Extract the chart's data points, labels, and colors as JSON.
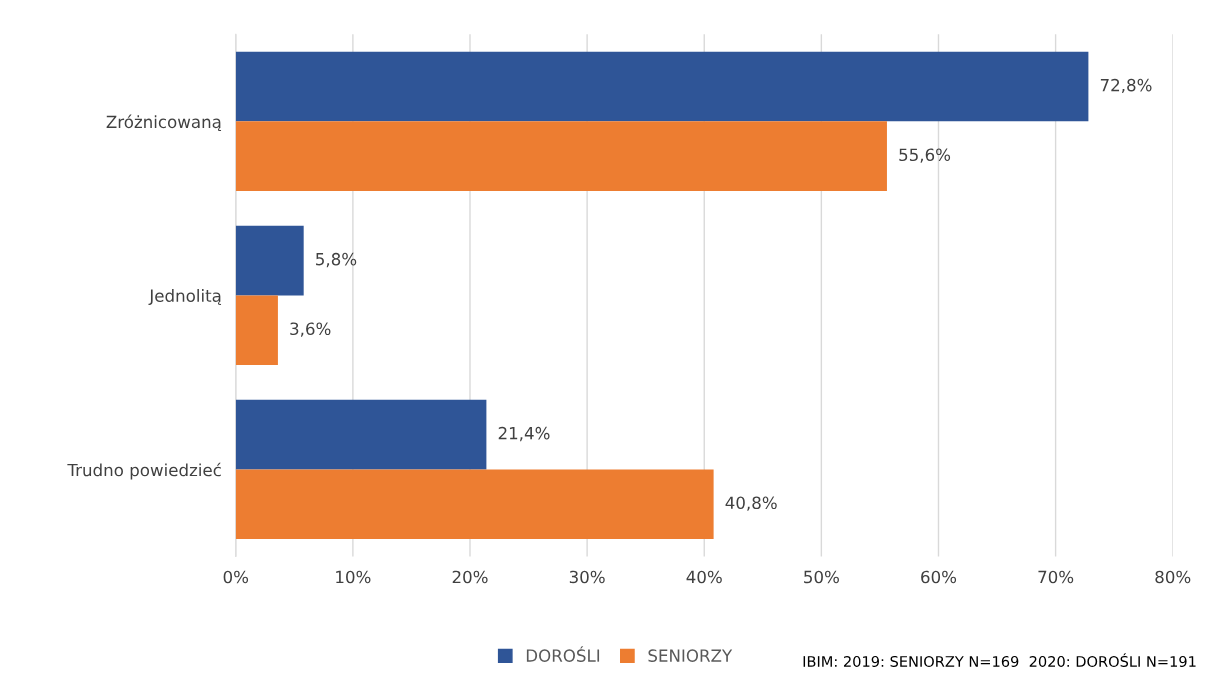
{
  "chart_data": {
    "type": "bar",
    "orientation": "horizontal",
    "categories": [
      "Zróżnicowaną",
      "Jednolitą",
      "Trudno powiedzieć"
    ],
    "series": [
      {
        "name": "DOROŚLI",
        "color": "#2f5597",
        "values": [
          72.8,
          5.8,
          21.4
        ],
        "value_labels": [
          "72,8%",
          "5,8%",
          "21,4%"
        ]
      },
      {
        "name": "SENIORZY",
        "color": "#ed7d31",
        "values": [
          55.6,
          3.6,
          40.8
        ],
        "value_labels": [
          "55,6%",
          "3,6%",
          "40,8%"
        ]
      }
    ],
    "xlim": [
      0,
      80
    ],
    "xticks": [
      {
        "value": 0,
        "label": "0%"
      },
      {
        "value": 10,
        "label": "10%"
      },
      {
        "value": 20,
        "label": "20%"
      },
      {
        "value": 30,
        "label": "30%"
      },
      {
        "value": 40,
        "label": "40%"
      },
      {
        "value": 50,
        "label": "50%"
      },
      {
        "value": 60,
        "label": "60%"
      },
      {
        "value": 70,
        "label": "70%"
      },
      {
        "value": 80,
        "label": "80%"
      }
    ],
    "grid": "x",
    "legend": "bottom",
    "annotations": [
      "IBIM: 2019: SENIORZY N=169  2020: DOROŚLI N=191"
    ]
  }
}
